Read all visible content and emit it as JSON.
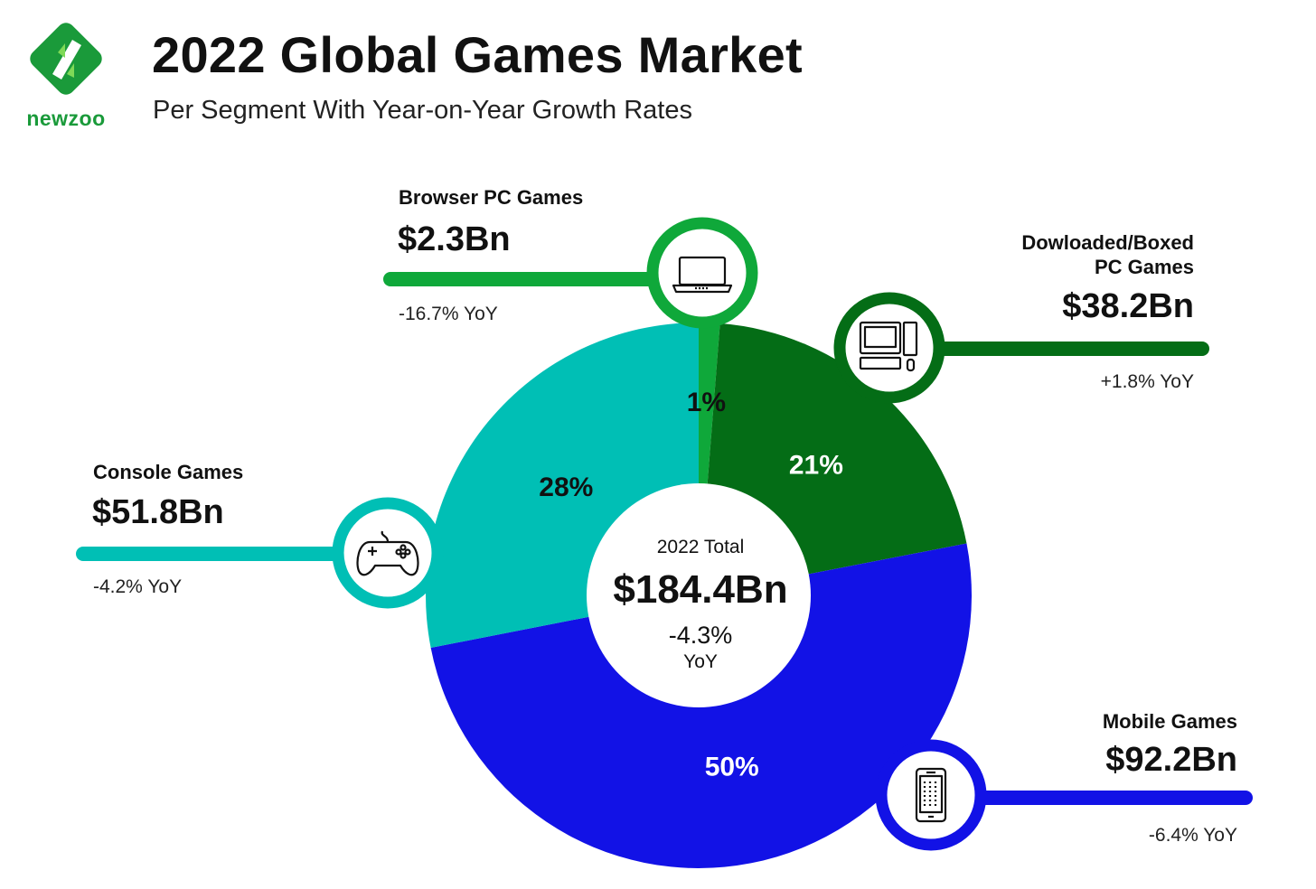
{
  "header": {
    "logo_text": "newzoo",
    "title": "2022 Global Games Market",
    "subtitle": "Per Segment With Year-on-Year Growth Rates"
  },
  "colors": {
    "browser": "#0fa83a",
    "downloaded": "#046d16",
    "console": "#00bfb5",
    "mobile": "#1212e6",
    "brand": "#1a9a3a"
  },
  "chart_data": {
    "type": "pie",
    "title": "2022 Global Games Market",
    "subtitle": "Per Segment With Year-on-Year Growth Rates",
    "total": {
      "label": "2022 Total",
      "value": "$184.4Bn",
      "yoy": "-4.3%",
      "yoy_unit": "YoY"
    },
    "slices": [
      {
        "name": "Browser PC Games",
        "value_bn": 2.3,
        "value_text": "$2.3Bn",
        "share_text": "1%",
        "yoy": "-16.7% YoY",
        "color": "#0fa83a",
        "icon": "laptop-icon"
      },
      {
        "name_lines": [
          "Dowloaded/Boxed",
          "PC Games"
        ],
        "value_bn": 38.2,
        "value_text": "$38.2Bn",
        "share_text": "21%",
        "yoy": "+1.8% YoY",
        "color": "#046d16",
        "icon": "desktop-computer-icon"
      },
      {
        "name": "Mobile Games",
        "value_bn": 92.2,
        "value_text": "$92.2Bn",
        "share_text": "50%",
        "yoy": "-6.4% YoY",
        "color": "#1212e6",
        "icon": "smartphone-icon"
      },
      {
        "name": "Console Games",
        "value_bn": 51.8,
        "value_text": "$51.8Bn",
        "share_text": "28%",
        "yoy": "-4.2% YoY",
        "color": "#00bfb5",
        "icon": "gamepad-icon"
      }
    ]
  }
}
